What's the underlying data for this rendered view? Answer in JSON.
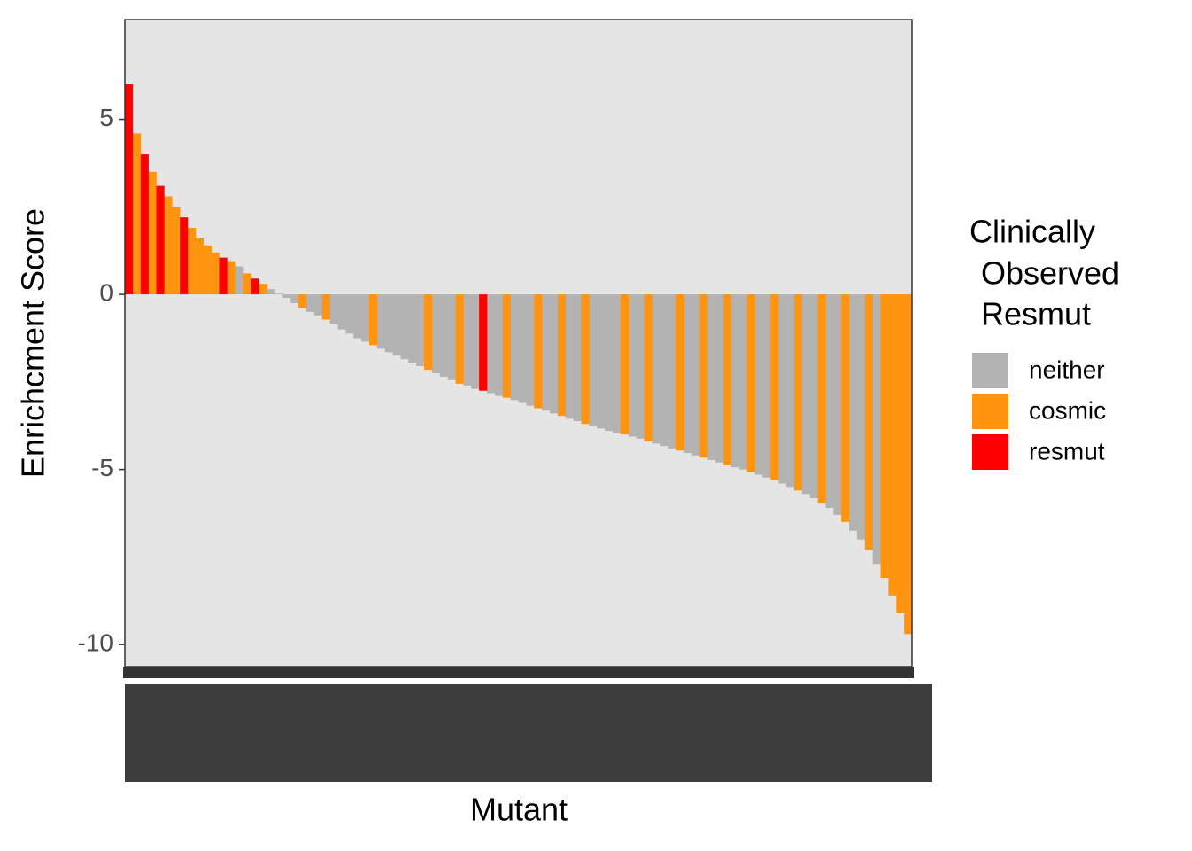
{
  "chart_data": {
    "type": "bar",
    "x_label": "Mutant",
    "y_label": "Enrichcment Score",
    "legend_title": [
      "Clinically",
      "Observed",
      "Resmut"
    ],
    "legend_position": "right",
    "ylim": [
      -10.63,
      7.85
    ],
    "yticks": [
      -10,
      -5,
      0,
      5
    ],
    "grid": false,
    "categories": [
      null,
      null,
      null,
      null,
      null,
      null,
      null,
      null,
      null,
      null,
      null,
      null,
      null,
      null,
      null,
      null,
      null,
      null,
      null,
      null,
      null,
      null,
      null,
      null,
      null,
      null,
      null,
      null,
      null,
      null,
      null,
      null,
      null,
      null,
      null,
      null,
      null,
      null,
      null,
      null,
      null,
      null,
      null,
      null,
      null,
      null,
      null,
      null,
      null,
      null,
      null,
      null,
      null,
      null,
      null,
      null,
      null,
      null,
      null,
      null,
      null,
      null,
      null,
      null,
      null,
      null,
      null,
      null,
      null,
      null,
      null,
      null,
      null,
      null,
      null,
      null,
      null,
      null,
      null,
      null,
      null,
      null,
      null,
      null,
      null,
      null,
      null,
      null,
      null,
      null,
      null,
      null,
      null,
      null,
      null,
      null,
      null,
      null,
      null,
      null
    ],
    "series": [
      {
        "name": "neither",
        "color": "#b3b3b3",
        "values": [
          null,
          null,
          null,
          null,
          null,
          null,
          null,
          null,
          null,
          null,
          null,
          null,
          null,
          null,
          0.8,
          null,
          null,
          null,
          0.15,
          0.02,
          -0.1,
          -0.25,
          null,
          -0.5,
          -0.6,
          null,
          -0.85,
          -1.0,
          -1.12,
          -1.25,
          -1.35,
          null,
          -1.55,
          -1.65,
          -1.75,
          -1.85,
          -1.95,
          -2.05,
          null,
          -2.25,
          -2.35,
          -2.45,
          null,
          -2.6,
          -2.7,
          null,
          -2.82,
          -2.9,
          null,
          -3.02,
          -3.1,
          -3.18,
          null,
          -3.32,
          -3.4,
          null,
          -3.55,
          -3.62,
          null,
          -3.77,
          -3.83,
          -3.9,
          -3.95,
          null,
          -4.06,
          -4.12,
          null,
          -4.26,
          -4.33,
          -4.4,
          null,
          -4.53,
          -4.6,
          null,
          -4.73,
          -4.8,
          null,
          -4.94,
          -5.0,
          null,
          -5.15,
          -5.23,
          null,
          -5.4,
          -5.5,
          null,
          -5.7,
          -5.82,
          null,
          -6.1,
          -6.3,
          null,
          -6.75,
          -7.0,
          null,
          -7.7,
          null,
          null,
          null,
          null
        ]
      },
      {
        "name": "cosmic",
        "color": "#ff9410",
        "values": [
          null,
          4.6,
          null,
          3.5,
          null,
          2.8,
          2.5,
          null,
          1.9,
          1.6,
          1.4,
          1.2,
          null,
          0.95,
          null,
          0.6,
          null,
          0.3,
          null,
          null,
          null,
          null,
          -0.4,
          null,
          null,
          -0.72,
          null,
          null,
          null,
          null,
          null,
          -1.45,
          null,
          null,
          null,
          null,
          null,
          null,
          -2.15,
          null,
          null,
          null,
          -2.55,
          null,
          null,
          null,
          null,
          null,
          -2.95,
          null,
          null,
          null,
          -3.25,
          null,
          null,
          -3.47,
          null,
          null,
          -3.7,
          null,
          null,
          null,
          null,
          -4.0,
          null,
          null,
          -4.2,
          null,
          null,
          null,
          -4.46,
          null,
          null,
          -4.66,
          null,
          null,
          -4.87,
          null,
          null,
          -5.08,
          null,
          null,
          -5.3,
          null,
          null,
          -5.6,
          null,
          null,
          -5.95,
          null,
          null,
          -6.5,
          null,
          null,
          -7.3,
          null,
          -8.1,
          -8.6,
          -9.1,
          -9.7
        ]
      },
      {
        "name": "resmut",
        "color": "#ff0000",
        "values": [
          6.0,
          null,
          4.0,
          null,
          3.1,
          null,
          null,
          2.2,
          null,
          null,
          null,
          null,
          1.05,
          null,
          null,
          null,
          0.45,
          null,
          null,
          null,
          null,
          null,
          null,
          null,
          null,
          null,
          null,
          null,
          null,
          null,
          null,
          null,
          null,
          null,
          null,
          null,
          null,
          null,
          null,
          null,
          null,
          null,
          null,
          null,
          null,
          -2.75,
          null,
          null,
          null,
          null,
          null,
          null,
          null,
          null,
          null,
          null,
          null,
          null,
          null,
          null,
          null,
          null,
          null,
          null,
          null,
          null,
          null,
          null,
          null,
          null,
          null,
          null,
          null,
          null,
          null,
          null,
          null,
          null,
          null,
          null,
          null,
          null,
          null,
          null,
          null,
          null,
          null,
          null,
          null,
          null,
          null,
          null,
          null,
          null,
          null,
          null,
          null,
          null,
          null,
          null
        ]
      }
    ]
  }
}
